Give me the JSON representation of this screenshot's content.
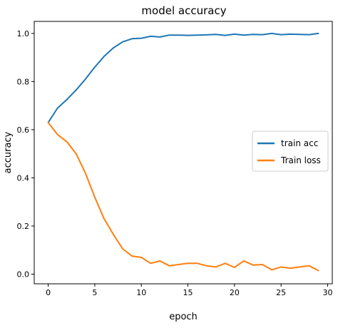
{
  "chart_data": {
    "type": "line",
    "title": "model accuracy",
    "xlabel": "epoch",
    "ylabel": "accuracy",
    "xlim": [
      -1.5,
      30.5
    ],
    "ylim": [
      -0.04,
      1.05
    ],
    "xticks": [
      0,
      5,
      10,
      15,
      20,
      25,
      30
    ],
    "yticks": [
      0.0,
      0.2,
      0.4,
      0.6,
      0.8,
      1.0
    ],
    "xtick_labels": [
      "0",
      "5",
      "10",
      "15",
      "20",
      "25",
      "30"
    ],
    "ytick_labels": [
      "0.0",
      "0.2",
      "0.4",
      "0.6",
      "0.8",
      "1.0"
    ],
    "grid": false,
    "legend_position": "center-right",
    "x": [
      0,
      1,
      2,
      3,
      4,
      5,
      6,
      7,
      8,
      9,
      10,
      11,
      12,
      13,
      14,
      15,
      16,
      17,
      18,
      19,
      20,
      21,
      22,
      23,
      24,
      25,
      26,
      27,
      28,
      29
    ],
    "series": [
      {
        "name": "train acc",
        "color": "#1f77b4",
        "values": [
          0.63,
          0.69,
          0.725,
          0.765,
          0.81,
          0.86,
          0.905,
          0.94,
          0.965,
          0.978,
          0.98,
          0.988,
          0.985,
          0.993,
          0.993,
          0.992,
          0.993,
          0.994,
          0.996,
          0.992,
          0.997,
          0.993,
          0.996,
          0.995,
          1.0,
          0.995,
          0.997,
          0.996,
          0.995,
          1.0
        ]
      },
      {
        "name": "Train loss",
        "color": "#ff7f0e",
        "values": [
          0.63,
          0.58,
          0.55,
          0.5,
          0.42,
          0.32,
          0.23,
          0.165,
          0.105,
          0.075,
          0.07,
          0.045,
          0.055,
          0.035,
          0.04,
          0.045,
          0.045,
          0.035,
          0.03,
          0.045,
          0.028,
          0.055,
          0.038,
          0.04,
          0.018,
          0.03,
          0.025,
          0.03,
          0.035,
          0.015
        ]
      }
    ]
  }
}
